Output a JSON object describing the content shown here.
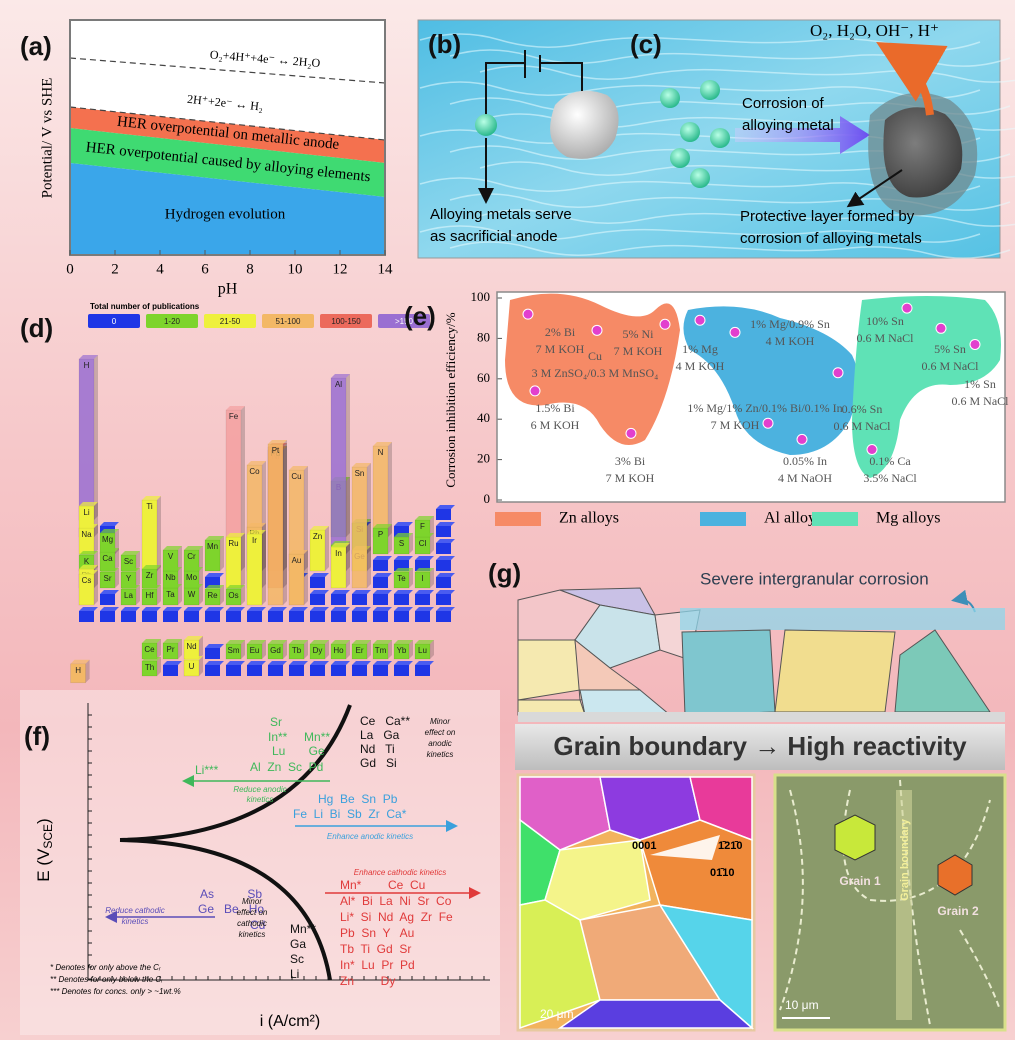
{
  "chart_data": [
    {
      "type": "line",
      "panel": "(a)",
      "ylabel": "Potential/ V vs SHE",
      "xlabel": "pH",
      "xlim": [
        0,
        14
      ],
      "xticks": [
        0,
        2,
        4,
        6,
        8,
        10,
        12,
        14
      ],
      "annotations": [
        "O₂+4H⁺+4e⁻ ↔ 2H₂O",
        "2H⁺+2e⁻ ↔ H₂"
      ],
      "regions": [
        {
          "name": "HER overpotential on metallic anode",
          "color": "#f4714f"
        },
        {
          "name": "HER overpotential caused by alloying elements",
          "color": "#3fda72"
        },
        {
          "name": "Hydrogen evolution",
          "color": "#3aa6ea"
        }
      ]
    },
    {
      "type": "scatter",
      "panel": "(e)",
      "ylabel": "Corrosion inhibition efficiency/%",
      "ylim": [
        0,
        100
      ],
      "yticks": [
        0,
        20,
        40,
        60,
        80,
        100
      ],
      "point_color": "#e23fce",
      "series": [
        {
          "name": "Zn alloys",
          "color": "#f68a66",
          "values": [
            92,
            84,
            87,
            54,
            33
          ],
          "labels": [
            [
              "2% Bi",
              "7 M KOH"
            ],
            [
              "Cu",
              "3 M ZnSO₄/0.3 M MnSO₄"
            ],
            [
              "5% Ni",
              "7 M KOH"
            ],
            [
              "1.5% Bi",
              "6 M KOH"
            ],
            [
              "3% Bi",
              "7 M KOH"
            ]
          ]
        },
        {
          "name": "Al alloys",
          "color": "#4cb2df",
          "values": [
            89,
            83,
            63,
            38,
            30
          ],
          "labels": [
            [
              "1% Mg",
              "4 M KOH"
            ],
            [
              "1% Mg/0.9% Sn",
              "4 M KOH"
            ],
            [
              "0.6% Sn",
              "0.6 M NaCl"
            ],
            [
              "1% Mg/1% Zn/0.1% Bi/0.1% In",
              "7 M KOH"
            ],
            [
              "0.05% In",
              "4 M NaOH"
            ]
          ]
        },
        {
          "name": "Mg alloys",
          "color": "#5fe2b6",
          "values": [
            95,
            85,
            77,
            25
          ],
          "labels": [
            [
              "10% Sn",
              "0.6 M NaCl"
            ],
            [
              "5% Sn",
              "0.6 M NaCl"
            ],
            [
              "1% Sn",
              "0.6 M NaCl"
            ],
            [
              "0.1% Ca",
              "3.5% NaCl"
            ]
          ]
        }
      ]
    }
  ],
  "panels": {
    "bc": {
      "labels": [
        "(b)",
        "(c)"
      ],
      "species": "O₂, H₂O, OH⁻, H⁺",
      "arrow_text": [
        "Corrosion of",
        "alloying metal"
      ],
      "anode_text": [
        "Alloying metals serve",
        "as  sacrificial anode"
      ],
      "layer_text": [
        "Protective layer formed by",
        "corrosion of alloying metals"
      ]
    },
    "d": {
      "label": "(d)",
      "legend_title": "Total number of publications",
      "legend": [
        {
          "name": "0",
          "color": "#1f36e6"
        },
        {
          "name": "1-20",
          "color": "#7ed42c"
        },
        {
          "name": "21-50",
          "color": "#eef03c"
        },
        {
          "name": "51-100",
          "color": "#f3b866"
        },
        {
          "name": "100-150",
          "color": "#ec6a5c"
        },
        {
          "name": ">150",
          "color": "#9a6fd2"
        }
      ],
      "elements": [
        {
          "symbol": "H",
          "color": "#9a6fd2"
        },
        {
          "symbol": "Li",
          "color": "#eef03c"
        },
        {
          "symbol": "Na",
          "color": "#eef03c"
        },
        {
          "symbol": "Mg",
          "color": "#7ed42c"
        },
        {
          "symbol": "K",
          "color": "#7ed42c"
        },
        {
          "symbol": "Ca",
          "color": "#7ed42c"
        },
        {
          "symbol": "Sc",
          "color": "#7ed42c"
        },
        {
          "symbol": "Ti",
          "color": "#eef03c"
        },
        {
          "symbol": "V",
          "color": "#7ed42c"
        },
        {
          "symbol": "Cr",
          "color": "#7ed42c"
        },
        {
          "symbol": "Mn",
          "color": "#7ed42c"
        },
        {
          "symbol": "Fe",
          "color": "#f4a0a0"
        },
        {
          "symbol": "Co",
          "color": "#f3b866"
        },
        {
          "symbol": "Ni",
          "color": "#f39a48"
        },
        {
          "symbol": "Cu",
          "color": "#f3b866"
        },
        {
          "symbol": "Zn",
          "color": "#eef03c"
        },
        {
          "symbol": "Ga",
          "color": "#7ed42c"
        },
        {
          "symbol": "Ge",
          "color": "#eef03c"
        },
        {
          "symbol": "Rb",
          "color": "#eef03c"
        },
        {
          "symbol": "Sr",
          "color": "#7ed42c"
        },
        {
          "symbol": "Y",
          "color": "#7ed42c"
        },
        {
          "symbol": "Zr",
          "color": "#7ed42c"
        },
        {
          "symbol": "Nb",
          "color": "#7ed42c"
        },
        {
          "symbol": "Mo",
          "color": "#7ed42c"
        },
        {
          "symbol": "Ru",
          "color": "#eef03c"
        },
        {
          "symbol": "Rh",
          "color": "#f3b866"
        },
        {
          "symbol": "Pd",
          "color": "#ec6a5c"
        },
        {
          "symbol": "In",
          "color": "#eef03c"
        },
        {
          "symbol": "Sn",
          "color": "#f3b866"
        },
        {
          "symbol": "Te",
          "color": "#7ed42c"
        },
        {
          "symbol": "I",
          "color": "#7ed42c"
        },
        {
          "symbol": "Cs",
          "color": "#eef03c"
        },
        {
          "symbol": "La",
          "color": "#7ed42c"
        },
        {
          "symbol": "Hf",
          "color": "#7ed42c"
        },
        {
          "symbol": "Ta",
          "color": "#7ed42c"
        },
        {
          "symbol": "W",
          "color": "#7ed42c"
        },
        {
          "symbol": "Re",
          "color": "#7ed42c"
        },
        {
          "symbol": "Os",
          "color": "#7ed42c"
        },
        {
          "symbol": "Ir",
          "color": "#eef03c"
        },
        {
          "symbol": "Pt",
          "color": "#f3b866"
        },
        {
          "symbol": "Au",
          "color": "#f3b866"
        },
        {
          "symbol": "B",
          "color": "#7ed42c"
        },
        {
          "symbol": "Al",
          "color": "#9a6fd2"
        },
        {
          "symbol": "Si",
          "color": "#7ed42c"
        },
        {
          "symbol": "P",
          "color": "#7ed42c"
        },
        {
          "symbol": "S",
          "color": "#7ed42c"
        },
        {
          "symbol": "Cl",
          "color": "#7ed42c"
        },
        {
          "symbol": "F",
          "color": "#7ed42c"
        },
        {
          "symbol": "N",
          "color": "#f3b866"
        },
        {
          "symbol": "Ce",
          "color": "#7ed42c"
        },
        {
          "symbol": "Pr",
          "color": "#7ed42c"
        },
        {
          "symbol": "Nd",
          "color": "#eef03c"
        },
        {
          "symbol": "Sm",
          "color": "#7ed42c"
        },
        {
          "symbol": "Eu",
          "color": "#7ed42c"
        },
        {
          "symbol": "Gd",
          "color": "#7ed42c"
        },
        {
          "symbol": "Tb",
          "color": "#7ed42c"
        },
        {
          "symbol": "Dy",
          "color": "#7ed42c"
        },
        {
          "symbol": "Ho",
          "color": "#7ed42c"
        },
        {
          "symbol": "Er",
          "color": "#7ed42c"
        },
        {
          "symbol": "Tm",
          "color": "#7ed42c"
        },
        {
          "symbol": "Yb",
          "color": "#7ed42c"
        },
        {
          "symbol": "Lu",
          "color": "#7ed42c"
        },
        {
          "symbol": "Th",
          "color": "#7ed42c"
        },
        {
          "symbol": "U",
          "color": "#eef03c"
        },
        {
          "symbol": "H",
          "color": "#f3b866"
        }
      ]
    },
    "f": {
      "label": "(f)",
      "ylabel": {
        "text": "E (V",
        "sub": "SCE",
        "tail": ")"
      },
      "xlabel": "i (A/cm²)",
      "minor_anodic": {
        "rows": [
          "Ce   Ca**",
          "La   Ga",
          "Nd   Ti",
          "Gd   Si"
        ],
        "note": [
          "Minor",
          "effect on",
          "anodic",
          "kinetics"
        ]
      },
      "reduce_anodic": {
        "rows": [
          "Sr",
          "In**     Mn**",
          "Lu       Ge",
          "Al  Zn  Sc  Pd",
          "Li***"
        ],
        "note": [
          "Reduce anodic",
          "kinetics"
        ]
      },
      "enhance_anodic": {
        "rows": [
          "Hg  Be  Sn  Pb",
          "Fe  Li  Bi  Sb  Zr  Ca*"
        ],
        "note": [
          "Enhance anodic kinetics"
        ]
      },
      "enhance_cathodic": {
        "rows": [
          "Mn*        Ce  Cu",
          "Al*  Bi  La  Ni  Sr  Co",
          "Li*  Si  Nd  Ag  Zr  Fe",
          "Pb  Sn  Y   Au",
          "Tb  Ti  Gd  Sr",
          "In*  Lu  Pr  Pd",
          "Zn        Dy"
        ],
        "note": [
          "Enhance cathodic kinetics"
        ]
      },
      "reduce_cathodic": {
        "rows": [
          "As          Sb",
          "Ge   Be   Ho",
          "Cd"
        ],
        "note": [
          "Reduce cathodic",
          "kinetics"
        ]
      },
      "minor_cathodic": {
        "rows": [
          "Mn**",
          "Ga",
          "Sc",
          "Li"
        ],
        "note": [
          "Minor",
          "effect on",
          "cathodic",
          "kinetics"
        ]
      },
      "footnotes": [
        "* Denotes for only above the Cᵣ",
        "** Denotes for only below the Cᵣ",
        "*** Denotes for concs. only > ~1wt.%"
      ]
    },
    "g": {
      "label": "(g)",
      "top_text": "Severe intergranular corrosion",
      "banner": "Grain boundary → High reactivity",
      "ebsd": [
        "0001",
        "1̄21̄0",
        "01̄10",
        "20 μm"
      ],
      "sem": [
        "Grain 1",
        "Grain 2",
        "10 μm",
        "Grain boundary"
      ]
    }
  }
}
